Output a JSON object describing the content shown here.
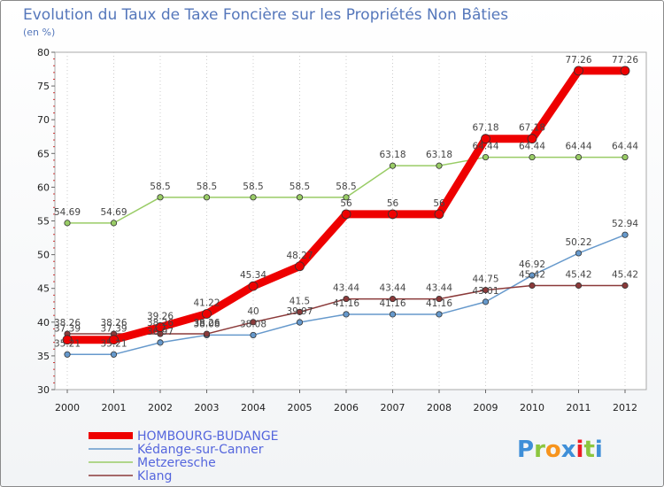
{
  "title": "Evolution du Taux de Taxe Foncière sur les Propriétés Non Bâties",
  "subtitle": "(en %)",
  "logo": {
    "letters": [
      "P",
      "r",
      "o",
      "x",
      "i",
      "t",
      "i"
    ],
    "colors": [
      "#3f8fd8",
      "#8cc63f",
      "#f7941d",
      "#3f8fd8",
      "#ed1c24",
      "#8cc63f",
      "#3f8fd8"
    ]
  },
  "chart_data": {
    "type": "line",
    "x": [
      "2000",
      "2001",
      "2002",
      "2003",
      "2004",
      "2005",
      "2006",
      "2007",
      "2008",
      "2009",
      "2010",
      "2011",
      "2012"
    ],
    "ylim": [
      30,
      80
    ],
    "yticks": [
      "30",
      "35",
      "40",
      "45",
      "50",
      "55",
      "60",
      "65",
      "70",
      "75",
      "80"
    ],
    "grid": "vertical-dotted",
    "legend_position": "bottom-left",
    "series": [
      {
        "name": "HOMBOURG-BUDANGE",
        "color": "#ee0000",
        "width": 9,
        "values": [
          37.39,
          37.39,
          39.26,
          41.22,
          45.34,
          48.27,
          56,
          56,
          56,
          67.18,
          67.18,
          77.26,
          77.26
        ],
        "labels": [
          "37.39",
          "37.39",
          "39.26",
          "41.22",
          "45.34",
          "48.27",
          "56",
          "56",
          "56",
          "67.18",
          "67.18",
          "77.26",
          "77.26"
        ]
      },
      {
        "name": "Kédange-sur-Canner",
        "color": "#6699cc",
        "width": 1.5,
        "values": [
          35.21,
          35.21,
          36.97,
          38.08,
          38.08,
          39.97,
          41.16,
          41.16,
          41.16,
          43.01,
          46.92,
          50.22,
          52.94
        ],
        "labels": [
          "35.21",
          "35.21",
          "36.97",
          "38.08",
          "38.08",
          "39.97",
          "41.16",
          "41.16",
          "41.16",
          "43.01",
          "46.92",
          "50.22",
          "52.94"
        ]
      },
      {
        "name": "Metzeresche",
        "color": "#99cc66",
        "width": 1.5,
        "values": [
          54.69,
          54.69,
          58.5,
          58.5,
          58.5,
          58.5,
          58.5,
          63.18,
          63.18,
          64.44,
          64.44,
          64.44,
          64.44
        ],
        "labels": [
          "54.69",
          "54.69",
          "58.5",
          "58.5",
          "58.5",
          "58.5",
          "58.5",
          "63.18",
          "63.18",
          "64.44",
          "64.44",
          "64.44",
          "64.44"
        ]
      },
      {
        "name": "Klang",
        "color": "#8b3a3a",
        "width": 1.5,
        "values": [
          38.26,
          38.26,
          38.26,
          38.26,
          40,
          41.5,
          43.44,
          43.44,
          43.44,
          44.75,
          45.42,
          45.42,
          45.42
        ],
        "labels": [
          "38.26",
          "38.26",
          "38.26",
          "38.26",
          "40",
          "41.5",
          "43.44",
          "43.44",
          "43.44",
          "44.75",
          "45.42",
          "45.42",
          "45.42"
        ]
      }
    ]
  }
}
